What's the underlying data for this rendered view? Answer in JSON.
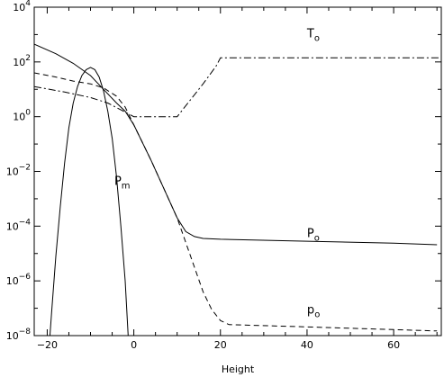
{
  "chart_data": {
    "type": "line",
    "xlabel": "Height",
    "ylabel": "",
    "xlim": [
      -23,
      71
    ],
    "ylim_log10": [
      -8,
      4
    ],
    "yscale": "log",
    "x_ticks": [
      -20,
      0,
      20,
      40,
      60
    ],
    "x_tick_labels": [
      "−20",
      "0",
      "20",
      "40",
      "60"
    ],
    "y_ticks_log10": [
      4,
      2,
      0,
      -2,
      -4,
      -6,
      -8
    ],
    "y_tick_labels": [
      {
        "base": "10",
        "exp": "4"
      },
      {
        "base": "10",
        "exp": "2"
      },
      {
        "base": "10",
        "exp": "0"
      },
      {
        "base": "10",
        "exp": "−2"
      },
      {
        "base": "10",
        "exp": "−4"
      },
      {
        "base": "10",
        "exp": "−6"
      },
      {
        "base": "10",
        "exp": "−8"
      }
    ],
    "series": [
      {
        "name": "P",
        "subscript": "o",
        "style": "solid",
        "label_at": [
          40,
          -4.4
        ],
        "points": [
          [
            -23,
            2.65
          ],
          [
            -18,
            2.3
          ],
          [
            -14,
            1.95
          ],
          [
            -10,
            1.5
          ],
          [
            -7,
            1.0
          ],
          [
            -4,
            0.5
          ],
          [
            -2,
            0.2
          ],
          [
            0,
            -0.3
          ],
          [
            4,
            -1.6
          ],
          [
            8,
            -3.0
          ],
          [
            10,
            -3.7
          ],
          [
            12,
            -4.2
          ],
          [
            14,
            -4.38
          ],
          [
            16,
            -4.45
          ],
          [
            20,
            -4.48
          ],
          [
            40,
            -4.55
          ],
          [
            60,
            -4.62
          ],
          [
            70,
            -4.68
          ]
        ]
      },
      {
        "name": "p",
        "subscript": "o",
        "style": "dashed",
        "label_at": [
          40,
          -7.2
        ],
        "points": [
          [
            -23,
            1.6
          ],
          [
            -18,
            1.45
          ],
          [
            -14,
            1.3
          ],
          [
            -10,
            1.2
          ],
          [
            -7,
            1.05
          ],
          [
            -4,
            0.75
          ],
          [
            -2,
            0.35
          ],
          [
            0,
            -0.3
          ],
          [
            4,
            -1.6
          ],
          [
            8,
            -3.0
          ],
          [
            10,
            -3.7
          ],
          [
            12,
            -4.6
          ],
          [
            14,
            -5.5
          ],
          [
            16,
            -6.4
          ],
          [
            18,
            -7.05
          ],
          [
            20,
            -7.45
          ],
          [
            22,
            -7.6
          ],
          [
            40,
            -7.68
          ],
          [
            60,
            -7.78
          ],
          [
            70,
            -7.83
          ]
        ]
      },
      {
        "name": "T",
        "subscript": "o",
        "style": "dashdot",
        "label_at": [
          40,
          2.9
        ],
        "points": [
          [
            -23,
            1.1
          ],
          [
            -16,
            0.9
          ],
          [
            -10,
            0.7
          ],
          [
            -6,
            0.5
          ],
          [
            -3,
            0.25
          ],
          [
            0,
            0.0
          ],
          [
            10,
            0.0
          ],
          [
            13,
            0.6
          ],
          [
            16,
            1.2
          ],
          [
            19,
            1.85
          ],
          [
            20,
            2.15
          ],
          [
            40,
            2.15
          ],
          [
            71,
            2.15
          ]
        ]
      },
      {
        "name": "P",
        "subscript": "m",
        "style": "solid",
        "label_at": [
          -4.5,
          -2.5
        ],
        "points": [
          [
            -19.5,
            -8.3
          ],
          [
            -19,
            -7.2
          ],
          [
            -18,
            -5.1
          ],
          [
            -17,
            -3.3
          ],
          [
            -16,
            -1.7
          ],
          [
            -15,
            -0.4
          ],
          [
            -14,
            0.5
          ],
          [
            -13,
            1.1
          ],
          [
            -12,
            1.5
          ],
          [
            -11,
            1.72
          ],
          [
            -10,
            1.8
          ],
          [
            -9,
            1.72
          ],
          [
            -8,
            1.45
          ],
          [
            -7,
            0.95
          ],
          [
            -6,
            0.2
          ],
          [
            -5,
            -0.8
          ],
          [
            -4,
            -2.2
          ],
          [
            -3,
            -4.0
          ],
          [
            -2,
            -6.0
          ],
          [
            -1.2,
            -8.3
          ]
        ]
      }
    ]
  }
}
